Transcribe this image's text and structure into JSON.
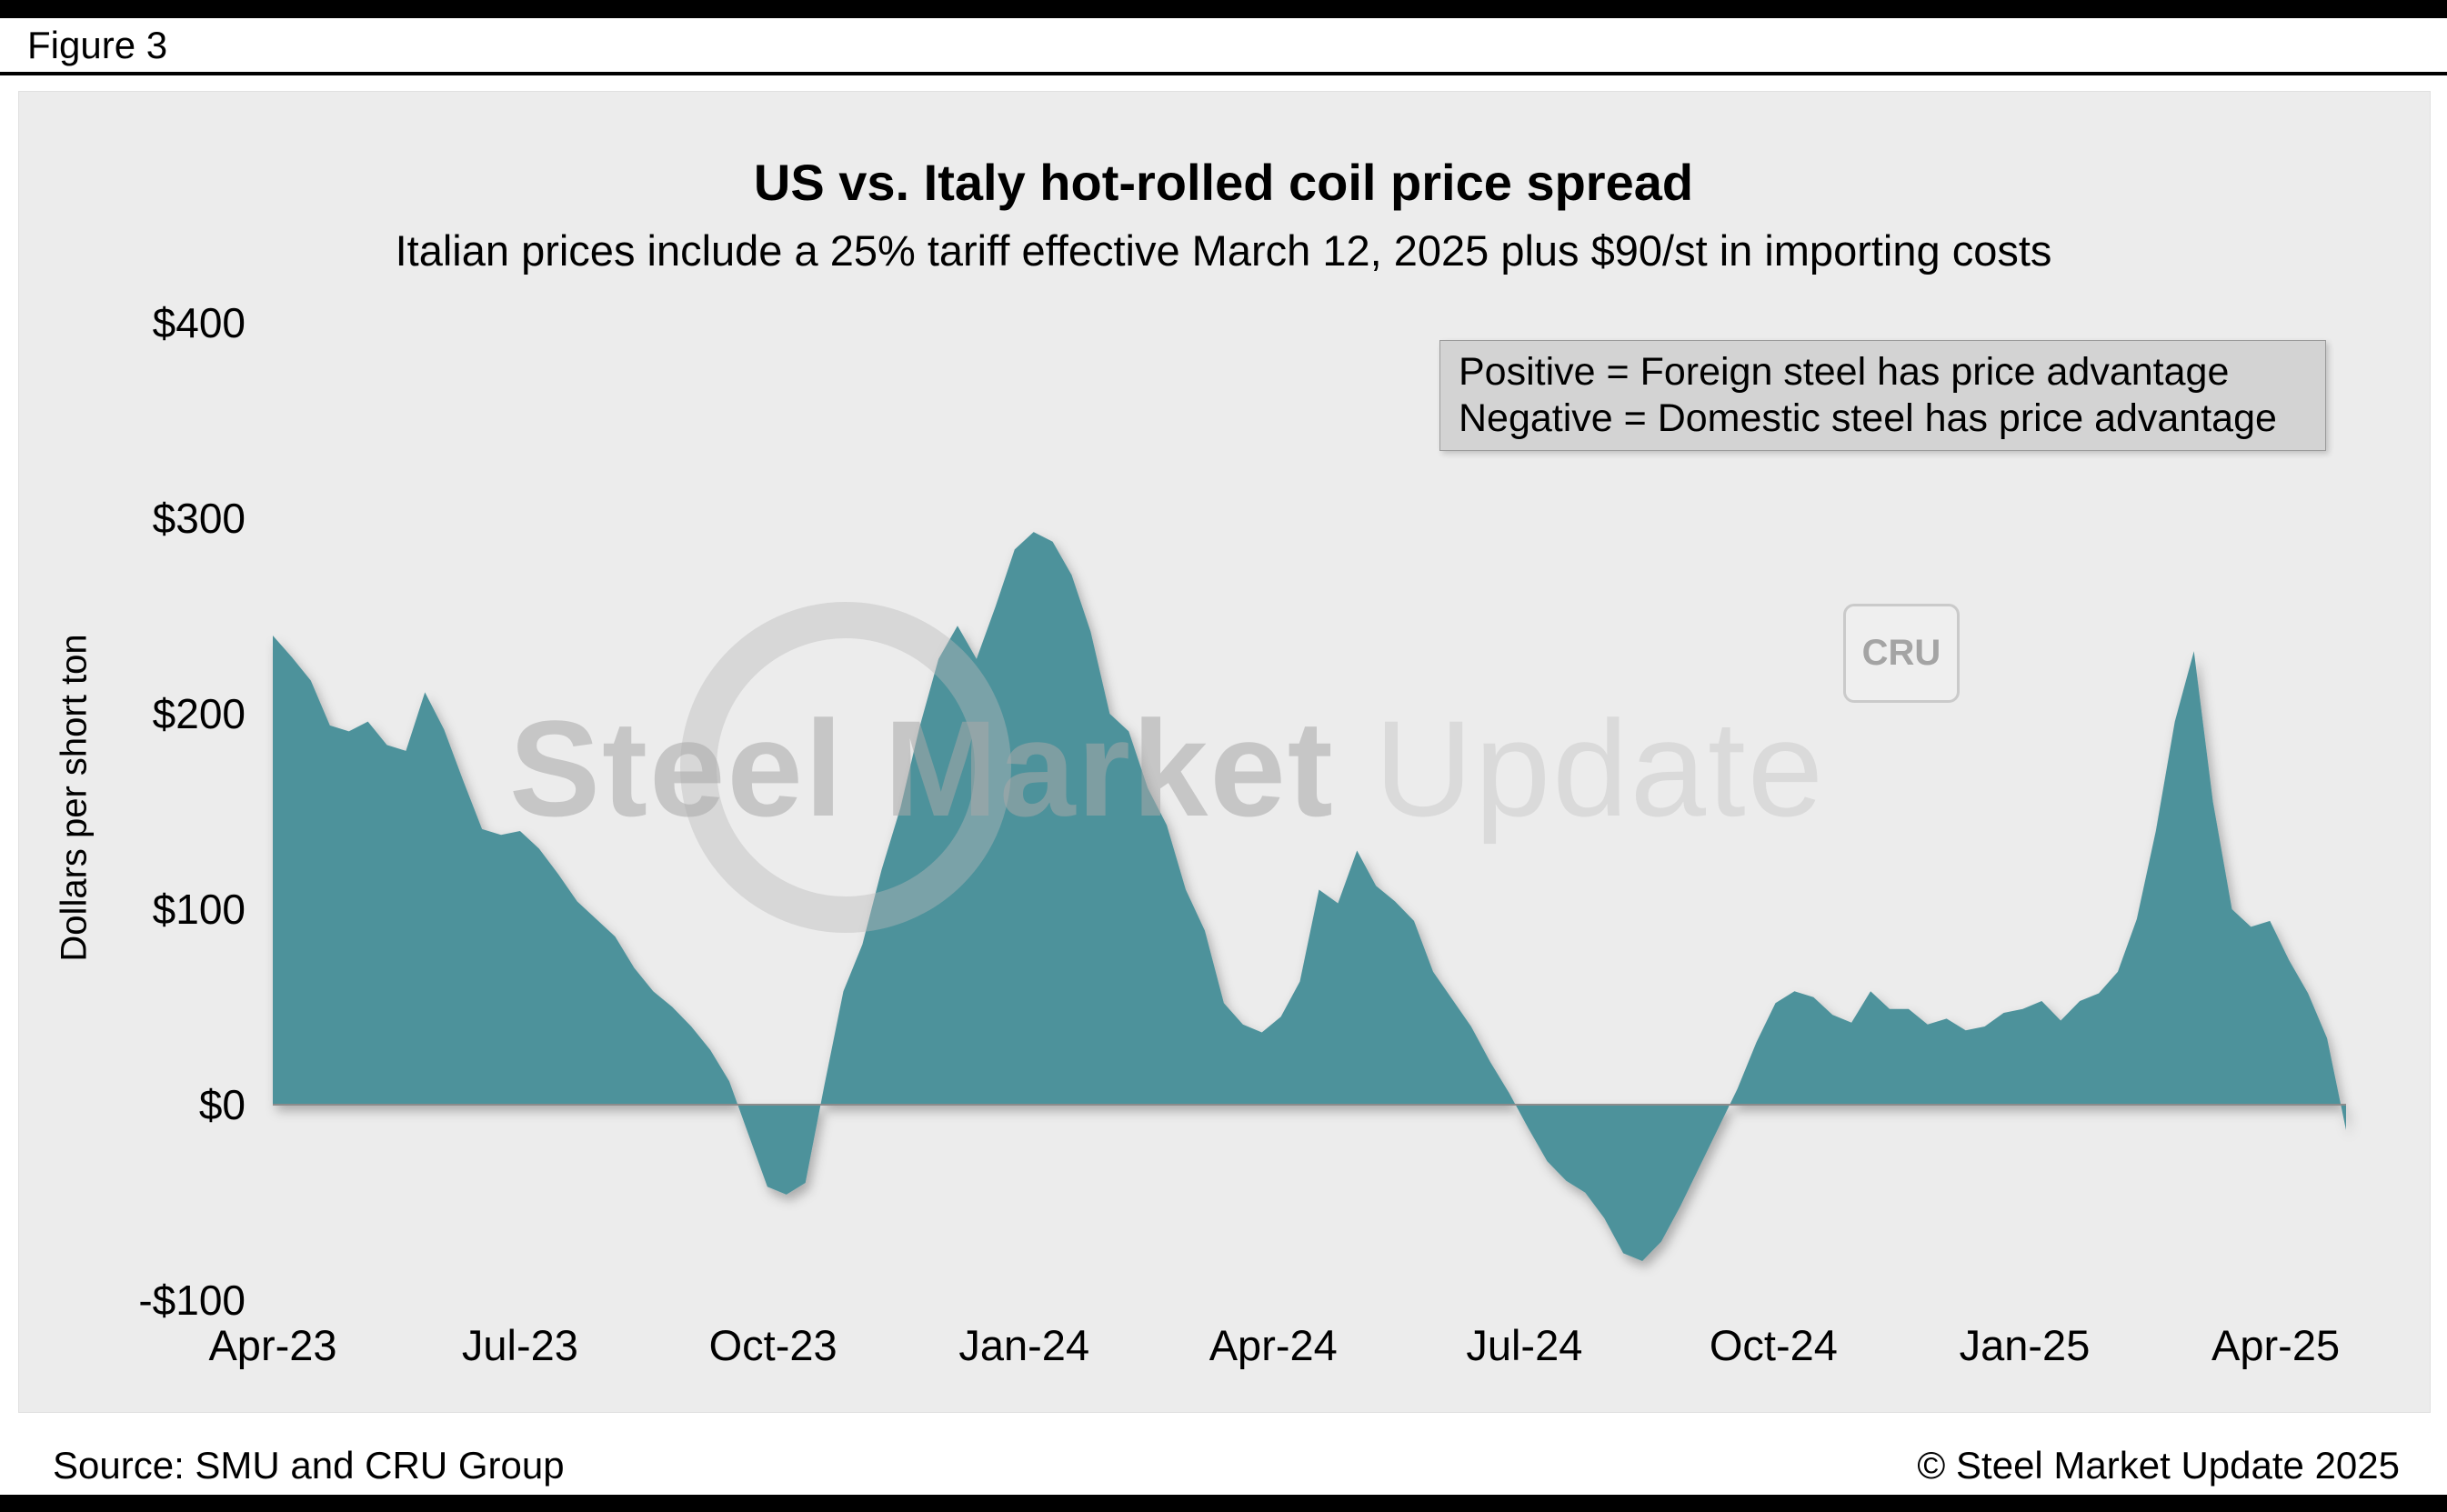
{
  "figure_label": "Figure 3",
  "title": "US vs. Italy hot-rolled coil price spread",
  "subtitle": "Italian prices include a 25% tariff effective March 12, 2025 plus $90/st in importing costs",
  "legend": {
    "line1": "Positive = Foreign steel has price advantage",
    "line2": "Negative = Domestic steel has price advantage"
  },
  "watermark": {
    "bold": "Steel Market",
    "light": " Update",
    "cru": "CRU"
  },
  "footer": {
    "source": "Source: SMU and CRU Group",
    "copyright": "© Steel Market Update 2025"
  },
  "colors": {
    "area": "#4E929B",
    "panel_bg": "#ECECEC",
    "legend_bg": "#D3D3D3",
    "zero_line": "#8C8C8C"
  },
  "chart_data": {
    "type": "area",
    "title": "US vs. Italy hot-rolled coil price spread",
    "subtitle": "Italian prices include a 25% tariff effective March 12, 2025 plus $90/st in importing costs",
    "ylabel": "Dollars per short ton",
    "unit": "USD per short ton",
    "frequency": "weekly",
    "x_start": "Apr-23",
    "x_end": "early May-25",
    "ylim": [
      -100,
      400
    ],
    "grid": false,
    "legend_position": "top-right",
    "y_ticks": [
      "$400",
      "$300",
      "$200",
      "$100",
      "$0",
      "-$100"
    ],
    "y_tick_values": [
      400,
      300,
      200,
      100,
      0,
      -100
    ],
    "x_ticks": [
      "Apr-23",
      "Jul-23",
      "Oct-23",
      "Jan-24",
      "Apr-24",
      "Jul-24",
      "Oct-24",
      "Jan-25",
      "Apr-25"
    ],
    "x_tick_weeks": [
      0,
      13,
      26.3,
      39.5,
      52.6,
      65.8,
      78.9,
      92.1,
      105.3
    ],
    "values": [
      240,
      229,
      217,
      194,
      191,
      196,
      184,
      181,
      211,
      192,
      166,
      141,
      138,
      140,
      131,
      118,
      104,
      95,
      86,
      70,
      58,
      50,
      40,
      28,
      12,
      -15,
      -42,
      -46,
      -40,
      10,
      58,
      82,
      120,
      152,
      193,
      228,
      245,
      228,
      255,
      284,
      293,
      288,
      271,
      242,
      200,
      191,
      162,
      143,
      110,
      89,
      52,
      41,
      37,
      45,
      63,
      110,
      103,
      130,
      112,
      104,
      94,
      68,
      54,
      40,
      22,
      6,
      -12,
      -29,
      -39,
      -45,
      -58,
      -76,
      -80,
      -70,
      -52,
      -32,
      -12,
      8,
      32,
      52,
      58,
      55,
      46,
      42,
      58,
      49,
      49,
      41,
      44,
      38,
      40,
      47,
      49,
      53,
      43,
      53,
      57,
      68,
      95,
      140,
      196,
      232,
      155,
      100,
      91,
      94,
      74,
      57,
      34,
      -13
    ]
  }
}
